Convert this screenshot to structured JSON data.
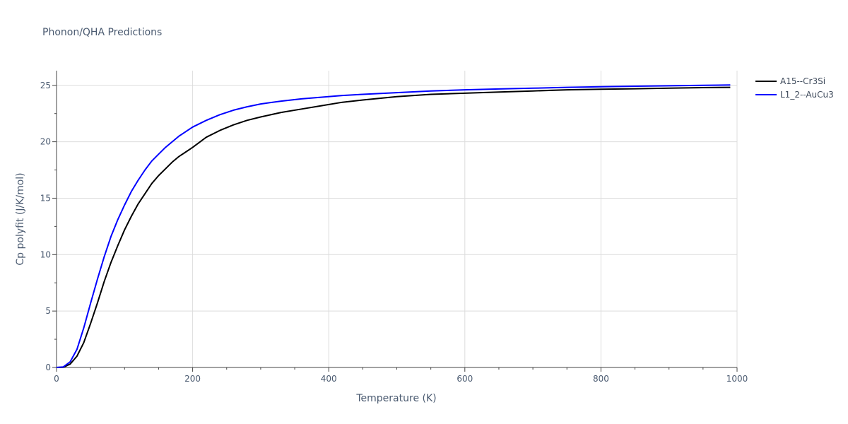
{
  "chart_data": {
    "type": "line",
    "title": "Phonon/QHA Predictions",
    "xlabel": "Temperature (K)",
    "ylabel": "Cp polyfit (J/K/mol)",
    "xlim": [
      0,
      1000
    ],
    "ylim": [
      0,
      26.3
    ],
    "xticks": [
      0,
      200,
      400,
      600,
      800,
      1000
    ],
    "yticks": [
      0,
      5,
      10,
      15,
      20,
      25
    ],
    "grid": true,
    "legend_position": "top-right",
    "series": [
      {
        "name": "A15--Cr3Si",
        "color": "#000000",
        "x": [
          0,
          10,
          20,
          30,
          40,
          50,
          60,
          70,
          80,
          90,
          100,
          110,
          120,
          130,
          140,
          150,
          160,
          170,
          180,
          190,
          200,
          220,
          240,
          260,
          280,
          300,
          330,
          360,
          390,
          420,
          450,
          500,
          550,
          600,
          650,
          700,
          750,
          800,
          850,
          900,
          950,
          990
        ],
        "y": [
          0,
          0.02,
          0.3,
          1.0,
          2.2,
          3.9,
          5.7,
          7.6,
          9.3,
          10.8,
          12.2,
          13.4,
          14.5,
          15.4,
          16.3,
          17.0,
          17.6,
          18.2,
          18.7,
          19.1,
          19.5,
          20.4,
          21.0,
          21.5,
          21.9,
          22.2,
          22.6,
          22.9,
          23.2,
          23.5,
          23.7,
          24.0,
          24.2,
          24.3,
          24.4,
          24.5,
          24.6,
          24.65,
          24.7,
          24.75,
          24.8,
          24.82
        ]
      },
      {
        "name": "L1_2--AuCu3",
        "color": "#0000ff",
        "x": [
          0,
          10,
          20,
          30,
          40,
          50,
          60,
          70,
          80,
          90,
          100,
          110,
          120,
          130,
          140,
          150,
          160,
          170,
          180,
          190,
          200,
          220,
          240,
          260,
          280,
          300,
          330,
          360,
          390,
          420,
          450,
          500,
          550,
          600,
          650,
          700,
          750,
          800,
          850,
          900,
          950,
          990
        ],
        "y": [
          0,
          0.05,
          0.5,
          1.6,
          3.5,
          5.7,
          7.8,
          9.8,
          11.6,
          13.1,
          14.4,
          15.6,
          16.6,
          17.5,
          18.3,
          18.9,
          19.5,
          20.0,
          20.5,
          20.9,
          21.3,
          21.9,
          22.4,
          22.8,
          23.1,
          23.35,
          23.6,
          23.8,
          23.95,
          24.1,
          24.2,
          24.35,
          24.5,
          24.6,
          24.68,
          24.75,
          24.82,
          24.87,
          24.92,
          24.96,
          25.0,
          25.03
        ]
      }
    ]
  }
}
